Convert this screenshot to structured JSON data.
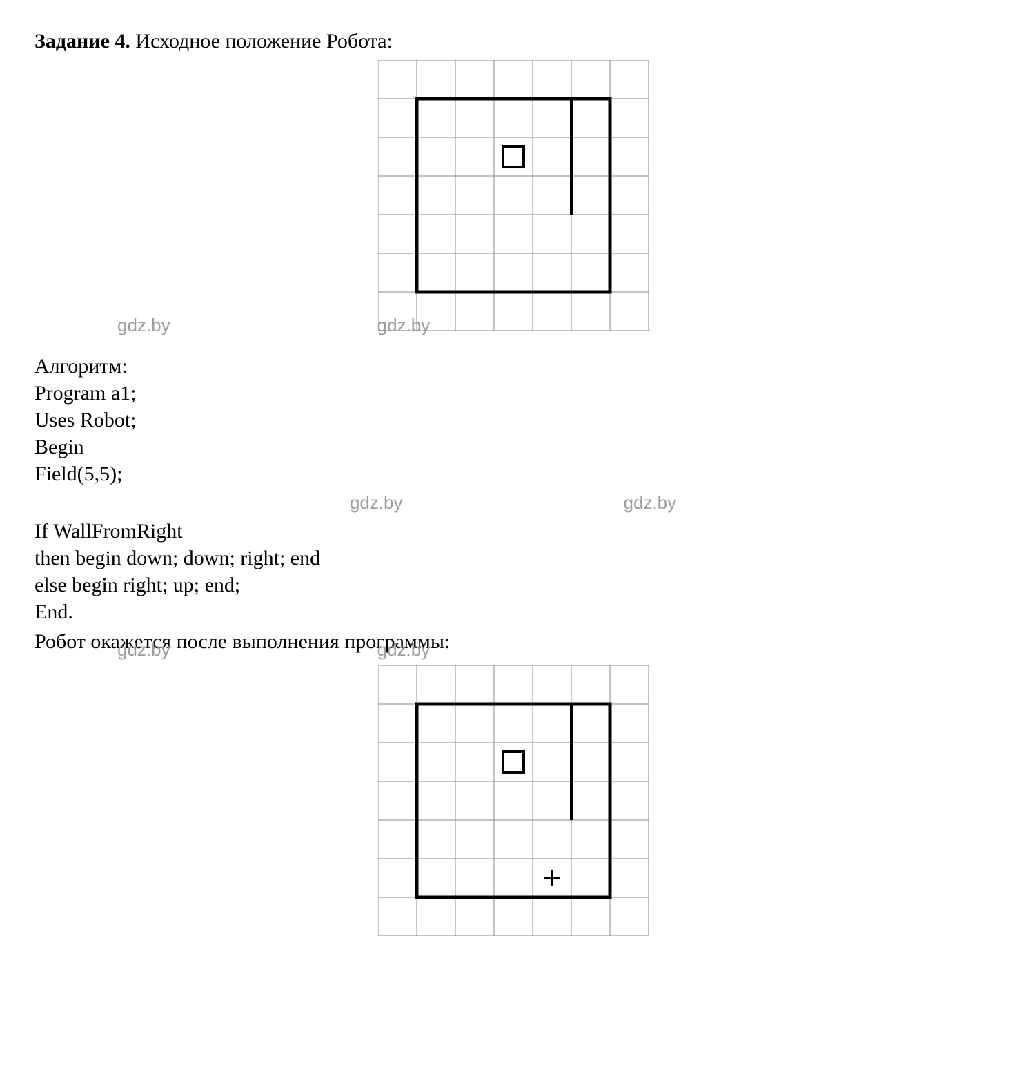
{
  "title": {
    "bold": "Задание 4.",
    "rest": " Исходное положение Робота:"
  },
  "watermark": "gdz.by",
  "algo": {
    "heading": "Алгоритм:",
    "lines": [
      "Program a1;",
      "Uses Robot;",
      "Begin",
      "Field(5,5);",
      "If WallFromRight",
      "then begin down; down; right; end",
      "else begin right; up; end;",
      "End."
    ]
  },
  "result_line": "Робот окажется после выполнения программы:",
  "grid": {
    "cols": 7,
    "rows": 7,
    "cell": 56,
    "stroke_thin": "#8a8a8a",
    "stroke_thick": "#000000",
    "thick_width": 5,
    "thin_width": 1,
    "inner_bounds": {
      "c0": 1,
      "c1": 6,
      "r0": 1,
      "r1": 6
    },
    "wall": {
      "col": 4,
      "row_top": 1,
      "row_bot": 3,
      "width": 4
    },
    "robot": {
      "col": 3,
      "row": 2,
      "size": 30,
      "stroke_w": 4,
      "color": "#000000"
    },
    "plus": {
      "show_in_second": true,
      "col": 4,
      "row": 5,
      "size": 22,
      "stroke_w": 3
    }
  }
}
